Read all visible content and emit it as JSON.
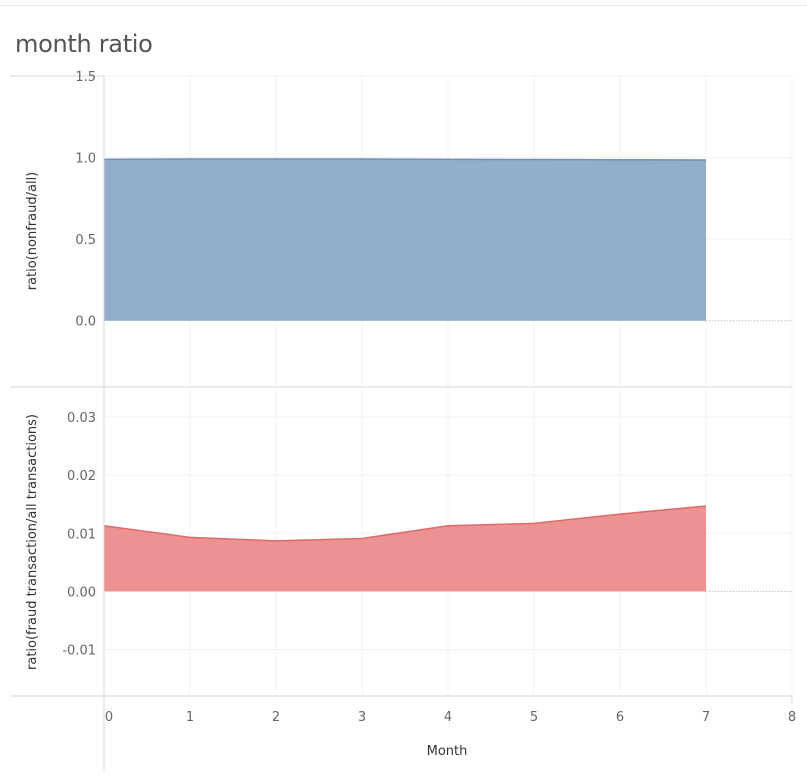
{
  "page": {
    "title": "month ratio"
  },
  "colors": {
    "top_area_fill": "#8caac8",
    "top_area_line": "#6f8fb4",
    "bottom_area_fill": "#ec8c8c",
    "bottom_area_line": "#de6a6a",
    "grid": "#f0f0f0",
    "pane_border": "#d4d4d4"
  },
  "chart_data": [
    {
      "type": "area",
      "x": [
        0,
        1,
        2,
        3,
        4,
        5,
        6,
        7
      ],
      "xlabel": "Month",
      "xlim": [
        0,
        8
      ],
      "xticks": [
        "0",
        "1",
        "2",
        "3",
        "4",
        "5",
        "6",
        "7",
        "8"
      ],
      "ylabel": "ratio(nonfraud/all)",
      "ylim": [
        -0.4,
        1.5
      ],
      "yticks": [
        "1.5",
        "1.0",
        "0.5",
        "0.0"
      ],
      "ytick_values": [
        1.5,
        1.0,
        0.5,
        0.0
      ],
      "series": [
        {
          "values": [
            0.989,
            0.991,
            0.991,
            0.991,
            0.989,
            0.988,
            0.987,
            0.985
          ]
        }
      ],
      "grid": true
    },
    {
      "type": "area",
      "x": [
        0,
        1,
        2,
        3,
        4,
        5,
        6,
        7
      ],
      "xlabel": "Month",
      "xlim": [
        0,
        8
      ],
      "xticks": [
        "0",
        "1",
        "2",
        "3",
        "4",
        "5",
        "6",
        "7",
        "8"
      ],
      "ylabel": "ratio(fraud transaction/all transactions)",
      "ylim": [
        -0.018,
        0.035
      ],
      "yticks": [
        "0.03",
        "0.02",
        "0.01",
        "0.00",
        "-0.01"
      ],
      "ytick_values": [
        0.03,
        0.02,
        0.01,
        0.0,
        -0.01
      ],
      "series": [
        {
          "values": [
            0.0113,
            0.0093,
            0.0087,
            0.0091,
            0.0113,
            0.0117,
            0.0133,
            0.0147
          ]
        }
      ],
      "grid": true
    }
  ]
}
